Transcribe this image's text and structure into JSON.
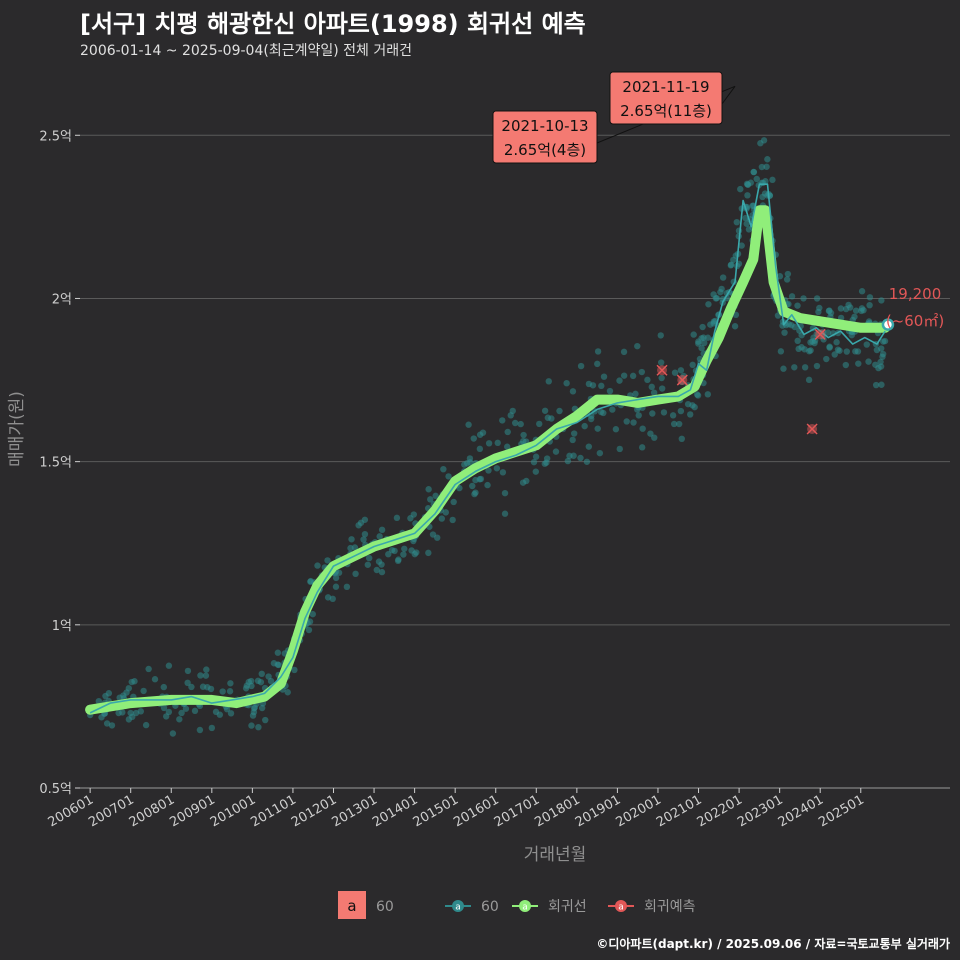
{
  "title": "[서구] 치평 해광한신 아파트(1998) 회귀선 예측",
  "subtitle": "2006-01-14 ~ 2025-09-04(최근계약일) 전체 거래건",
  "caption": "©디아파트(dapt.kr) / 2025.09.06 / 자료=국토교통부 실거래가",
  "colors": {
    "background": "#2b2a2c",
    "points": "#2f8a8c",
    "monthly_line": "#3aa8ab",
    "regression": "#90ee7a",
    "prediction": "#e25757",
    "label_box": "#f47a72",
    "grid": "#5a5a5a"
  },
  "chart_data": {
    "type": "scatter",
    "xlabel": "거래년월",
    "ylabel": "매매가(원)",
    "x_ticks": [
      "200601",
      "200701",
      "200801",
      "200901",
      "201001",
      "201101",
      "201201",
      "201301",
      "201401",
      "201501",
      "201601",
      "201701",
      "201801",
      "201901",
      "202001",
      "202101",
      "202201",
      "202301",
      "202401",
      "202501"
    ],
    "y_ticks": [
      {
        "value": 0.5,
        "label": "0.5억"
      },
      {
        "value": 1.0,
        "label": "1억"
      },
      {
        "value": 1.5,
        "label": "1.5억"
      },
      {
        "value": 2.0,
        "label": "2억"
      },
      {
        "value": 2.5,
        "label": "2.5억"
      }
    ],
    "ylim": [
      0.5,
      2.7
    ],
    "xlim": [
      2005.75,
      2027.2
    ],
    "grid": true,
    "legend_position": "bottom",
    "series": [
      {
        "name": "60",
        "kind": "monthly_average",
        "points": [
          [
            2006.0,
            0.73
          ],
          [
            2006.5,
            0.76
          ],
          [
            2007.0,
            0.77
          ],
          [
            2007.5,
            0.77
          ],
          [
            2008.0,
            0.77
          ],
          [
            2008.5,
            0.78
          ],
          [
            2009.0,
            0.76
          ],
          [
            2009.5,
            0.77
          ],
          [
            2010.0,
            0.78
          ],
          [
            2010.3,
            0.79
          ],
          [
            2010.7,
            0.84
          ],
          [
            2011.0,
            0.9
          ],
          [
            2011.3,
            1.02
          ],
          [
            2011.6,
            1.1
          ],
          [
            2012.0,
            1.18
          ],
          [
            2012.5,
            1.21
          ],
          [
            2013.0,
            1.24
          ],
          [
            2013.5,
            1.26
          ],
          [
            2014.0,
            1.28
          ],
          [
            2014.5,
            1.34
          ],
          [
            2015.0,
            1.43
          ],
          [
            2015.5,
            1.47
          ],
          [
            2016.0,
            1.5
          ],
          [
            2016.5,
            1.52
          ],
          [
            2017.0,
            1.55
          ],
          [
            2017.5,
            1.6
          ],
          [
            2018.0,
            1.62
          ],
          [
            2018.5,
            1.66
          ],
          [
            2019.0,
            1.68
          ],
          [
            2019.5,
            1.69
          ],
          [
            2020.0,
            1.7
          ],
          [
            2020.5,
            1.7
          ],
          [
            2020.8,
            1.72
          ],
          [
            2021.0,
            1.8
          ],
          [
            2021.2,
            1.78
          ],
          [
            2021.4,
            1.9
          ],
          [
            2021.6,
            1.99
          ],
          [
            2021.9,
            2.05
          ],
          [
            2022.1,
            2.3
          ],
          [
            2022.3,
            2.22
          ],
          [
            2022.5,
            2.35
          ],
          [
            2022.7,
            2.35
          ],
          [
            2022.9,
            2.1
          ],
          [
            2023.1,
            1.92
          ],
          [
            2023.3,
            1.95
          ],
          [
            2023.6,
            1.89
          ],
          [
            2023.9,
            1.91
          ],
          [
            2024.2,
            1.88
          ],
          [
            2024.5,
            1.9
          ],
          [
            2024.8,
            1.86
          ],
          [
            2025.1,
            1.88
          ],
          [
            2025.4,
            1.86
          ],
          [
            2025.6,
            1.9
          ]
        ]
      },
      {
        "name": "회귀선",
        "kind": "regression",
        "points": [
          [
            2006.0,
            0.74
          ],
          [
            2007.0,
            0.76
          ],
          [
            2008.0,
            0.77
          ],
          [
            2009.0,
            0.77
          ],
          [
            2009.6,
            0.76
          ],
          [
            2010.3,
            0.78
          ],
          [
            2010.7,
            0.82
          ],
          [
            2011.0,
            0.92
          ],
          [
            2011.3,
            1.04
          ],
          [
            2011.6,
            1.12
          ],
          [
            2012.0,
            1.18
          ],
          [
            2012.5,
            1.21
          ],
          [
            2013.0,
            1.24
          ],
          [
            2013.5,
            1.26
          ],
          [
            2014.0,
            1.28
          ],
          [
            2014.5,
            1.35
          ],
          [
            2015.0,
            1.44
          ],
          [
            2015.5,
            1.48
          ],
          [
            2016.0,
            1.51
          ],
          [
            2016.5,
            1.53
          ],
          [
            2017.0,
            1.55
          ],
          [
            2017.5,
            1.6
          ],
          [
            2018.0,
            1.64
          ],
          [
            2018.5,
            1.69
          ],
          [
            2019.0,
            1.69
          ],
          [
            2019.5,
            1.68
          ],
          [
            2020.0,
            1.69
          ],
          [
            2020.5,
            1.7
          ],
          [
            2020.9,
            1.73
          ],
          [
            2021.2,
            1.81
          ],
          [
            2021.5,
            1.88
          ],
          [
            2021.8,
            1.97
          ],
          [
            2022.1,
            2.05
          ],
          [
            2022.35,
            2.12
          ],
          [
            2022.5,
            2.27
          ],
          [
            2022.65,
            2.27
          ],
          [
            2022.85,
            2.05
          ],
          [
            2023.1,
            1.96
          ],
          [
            2023.5,
            1.94
          ],
          [
            2024.0,
            1.93
          ],
          [
            2024.5,
            1.92
          ],
          [
            2025.0,
            1.91
          ],
          [
            2025.6,
            1.91
          ]
        ]
      },
      {
        "name": "회귀예측",
        "kind": "prediction",
        "points": [
          [
            2020.1,
            1.78
          ],
          [
            2020.6,
            1.75
          ],
          [
            2023.8,
            1.6
          ],
          [
            2024.0,
            1.89
          ]
        ]
      }
    ],
    "highlight_labels": [
      {
        "date": "2021-10-13",
        "price": "2.65억(4층)"
      },
      {
        "date": "2021-11-19",
        "price": "2.65억(11층)"
      }
    ],
    "last_point": {
      "x": 2025.67,
      "y": 1.92,
      "value_label": "19,200",
      "area_label": "(~60㎡)"
    },
    "legend": {
      "badge_letter": "a",
      "badge_label": "60",
      "items": [
        {
          "name": "60",
          "color": "#2f8a8c"
        },
        {
          "name": "회귀선",
          "color": "#90ee7a"
        },
        {
          "name": "회귀예측",
          "color": "#e25757"
        }
      ]
    }
  }
}
